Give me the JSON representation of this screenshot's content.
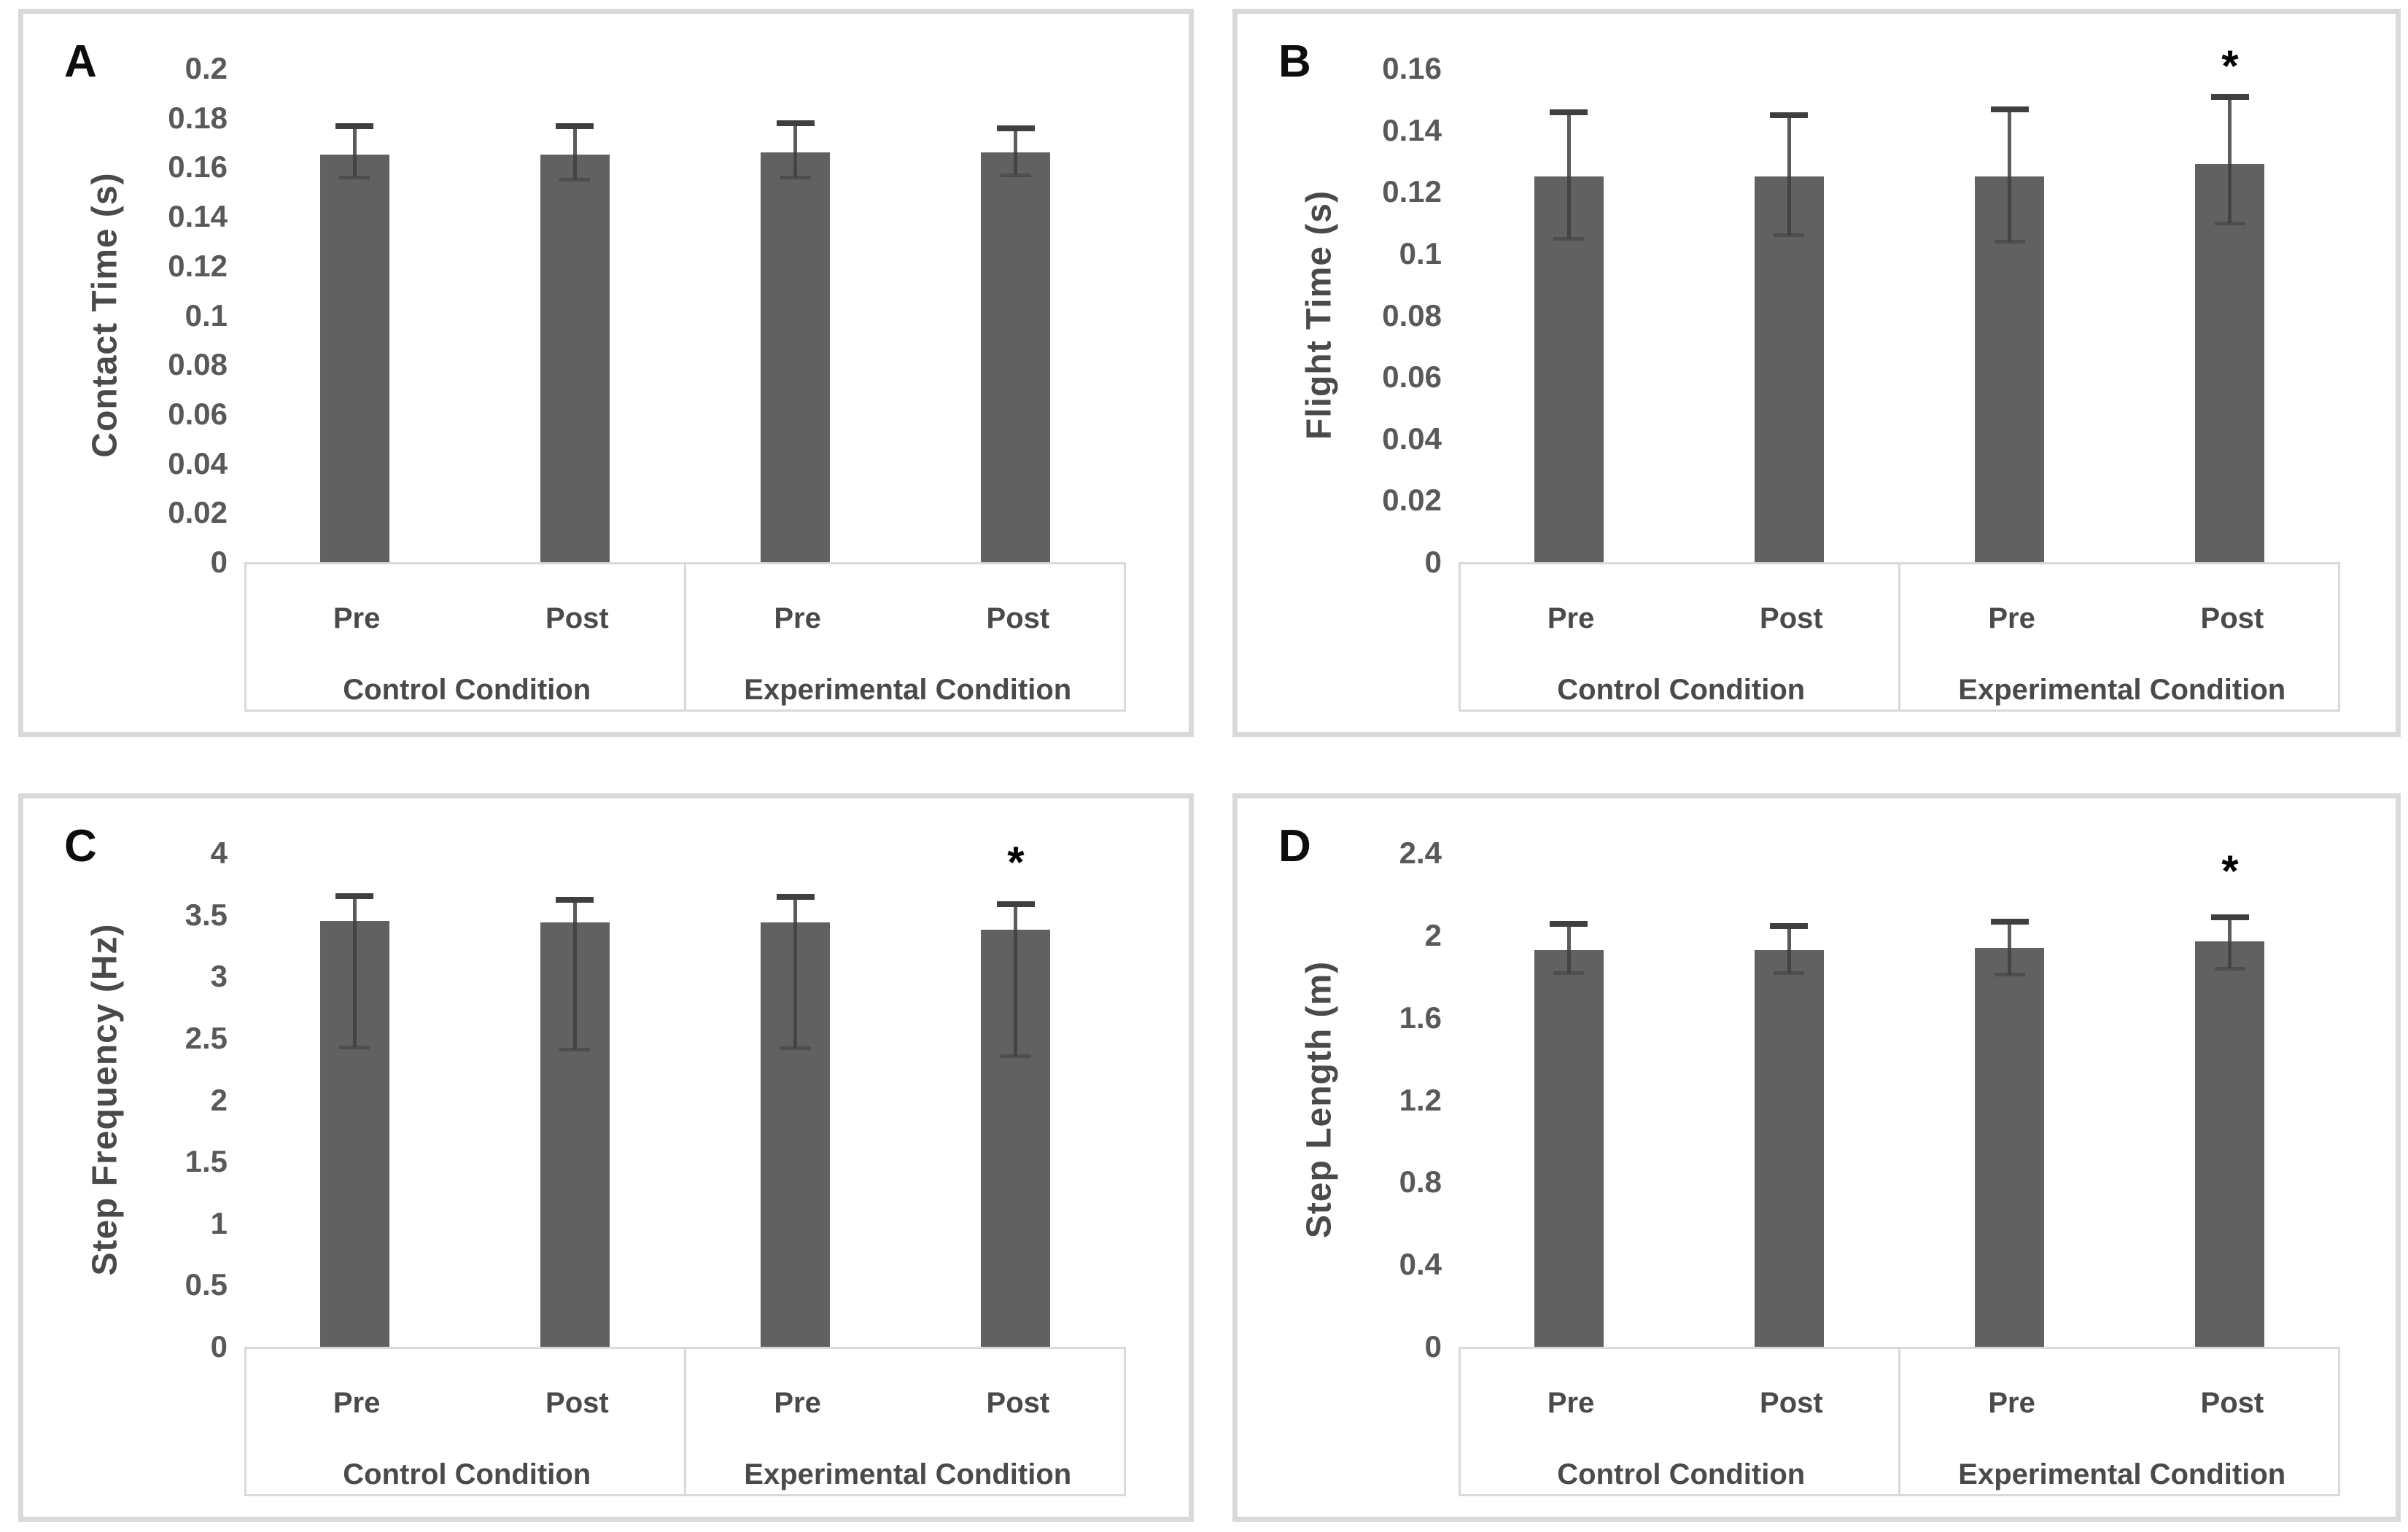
{
  "figure": {
    "description": "Four-panel bar chart figure comparing Pre vs Post measurements for Control and Experimental conditions",
    "significance_marker": "*"
  },
  "chart_data": [
    {
      "type": "bar",
      "letter": "A",
      "ylabel": "Contact Time (s)",
      "ymax": 0.2,
      "ticks": [
        "0.2",
        "0.18",
        "0.16",
        "0.14",
        "0.12",
        "0.1",
        "0.08",
        "0.06",
        "0.04",
        "0.02",
        "0"
      ],
      "categories": [
        "Pre",
        "Post",
        "Pre",
        "Post"
      ],
      "groups": [
        "Control Condition",
        "Experimental Condition"
      ],
      "legend": "none",
      "grid": "off",
      "bars": [
        {
          "mean": 0.165,
          "err_low": 0.156,
          "err_high": 0.177,
          "sig": false
        },
        {
          "mean": 0.165,
          "err_low": 0.155,
          "err_high": 0.177,
          "sig": false
        },
        {
          "mean": 0.166,
          "err_low": 0.156,
          "err_high": 0.178,
          "sig": false
        },
        {
          "mean": 0.166,
          "err_low": 0.157,
          "err_high": 0.176,
          "sig": false
        }
      ],
      "sig_y": null
    },
    {
      "type": "bar",
      "letter": "B",
      "ylabel": "Flight Time (s)",
      "ymax": 0.16,
      "ticks": [
        "0.16",
        "0.14",
        "0.12",
        "0.1",
        "0.08",
        "0.06",
        "0.04",
        "0.02",
        "0"
      ],
      "categories": [
        "Pre",
        "Post",
        "Pre",
        "Post"
      ],
      "groups": [
        "Control Condition",
        "Experimental Condition"
      ],
      "legend": "none",
      "grid": "off",
      "bars": [
        {
          "mean": 0.125,
          "err_low": 0.105,
          "err_high": 0.146,
          "sig": false
        },
        {
          "mean": 0.125,
          "err_low": 0.106,
          "err_high": 0.145,
          "sig": false
        },
        {
          "mean": 0.125,
          "err_low": 0.104,
          "err_high": 0.147,
          "sig": false
        },
        {
          "mean": 0.129,
          "err_low": 0.11,
          "err_high": 0.151,
          "sig": true
        }
      ],
      "sig_y": 0.162
    },
    {
      "type": "bar",
      "letter": "C",
      "ylabel": "Step Frequency (Hz)",
      "ymax": 4,
      "ticks": [
        "4",
        "3.5",
        "3",
        "2.5",
        "2",
        "1.5",
        "1",
        "0.5",
        "0"
      ],
      "categories": [
        "Pre",
        "Post",
        "Pre",
        "Post"
      ],
      "groups": [
        "Control Condition",
        "Experimental Condition"
      ],
      "legend": "none",
      "grid": "off",
      "bars": [
        {
          "mean": 3.45,
          "err_low": 2.43,
          "err_high": 3.66,
          "sig": false
        },
        {
          "mean": 3.44,
          "err_low": 2.41,
          "err_high": 3.63,
          "sig": false
        },
        {
          "mean": 3.44,
          "err_low": 2.42,
          "err_high": 3.65,
          "sig": false
        },
        {
          "mean": 3.38,
          "err_low": 2.36,
          "err_high": 3.59,
          "sig": true
        }
      ],
      "sig_y": 3.95
    },
    {
      "type": "bar",
      "letter": "D",
      "ylabel": "Step Length (m)",
      "ymax": 2.4,
      "ticks": [
        "2.4",
        "2",
        "1.6",
        "1.2",
        "0.8",
        "0.4",
        "0"
      ],
      "categories": [
        "Pre",
        "Post",
        "Pre",
        "Post"
      ],
      "groups": [
        "Control Condition",
        "Experimental Condition"
      ],
      "legend": "none",
      "grid": "off",
      "bars": [
        {
          "mean": 1.93,
          "err_low": 1.82,
          "err_high": 2.06,
          "sig": false
        },
        {
          "mean": 1.93,
          "err_low": 1.82,
          "err_high": 2.05,
          "sig": false
        },
        {
          "mean": 1.94,
          "err_low": 1.81,
          "err_high": 2.07,
          "sig": false
        },
        {
          "mean": 1.97,
          "err_low": 1.84,
          "err_high": 2.09,
          "sig": true
        }
      ],
      "sig_y": 2.33
    }
  ],
  "colors": {
    "bar_fill": "#616161",
    "error_bar": "#3f3f3f",
    "panel_border": "#d9d9d9",
    "axis_text": "#595959",
    "label_text": "#4a4a4a",
    "letter_text": "#0d0d0d",
    "background": "#ffffff"
  }
}
